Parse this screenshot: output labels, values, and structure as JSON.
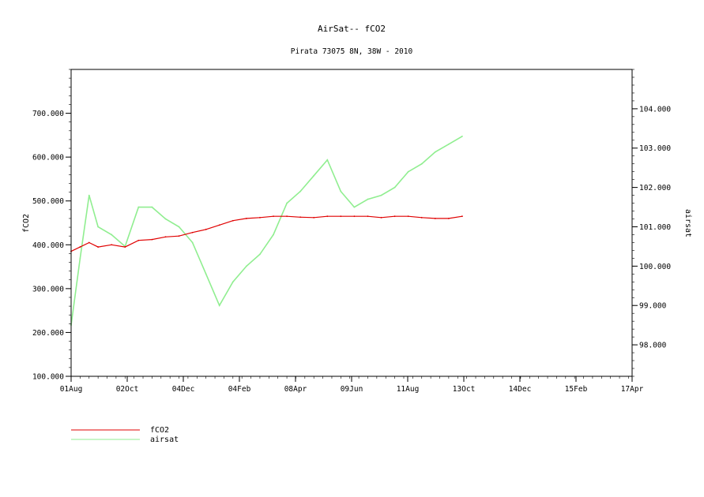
{
  "chart_data": {
    "type": "line",
    "title": "AirSat-- fCO2",
    "subtitle": "Pirata 73075 8N, 38W - 2010",
    "x": {
      "tick_labels": [
        "01Aug",
        "02Oct",
        "04Dec",
        "04Feb",
        "08Apr",
        "09Jun",
        "11Aug",
        "13Oct",
        "14Dec",
        "15Feb",
        "17Apr"
      ],
      "range_days": [
        0,
        624
      ]
    },
    "y_left": {
      "label": "fCO2",
      "ylim": [
        100,
        800
      ],
      "tick_labels": [
        "100.000",
        "200.000",
        "300.000",
        "400.000",
        "500.000",
        "600.000",
        "700.000"
      ],
      "tick_values": [
        100,
        200,
        300,
        400,
        500,
        600,
        700
      ]
    },
    "y_right": {
      "label": "airsat",
      "ylim": [
        97.2,
        105.0
      ],
      "tick_labels": [
        "98.000",
        "99.000",
        "100.000",
        "101.000",
        "102.000",
        "103.000",
        "104.000"
      ],
      "tick_values": [
        98,
        99,
        100,
        101,
        102,
        103,
        104
      ]
    },
    "series": [
      {
        "name": "fCO2",
        "axis": "left",
        "color": "#e00000",
        "x_days": [
          0,
          10,
          20,
          30,
          45,
          60,
          75,
          90,
          105,
          120,
          135,
          150,
          165,
          180,
          195,
          210,
          225,
          240,
          255,
          270,
          285,
          300,
          315,
          330,
          345,
          360,
          375,
          390,
          405,
          420,
          435
        ],
        "values": [
          385,
          395,
          405,
          395,
          400,
          395,
          410,
          412,
          418,
          420,
          428,
          435,
          445,
          455,
          460,
          462,
          465,
          465,
          463,
          462,
          465,
          465,
          465,
          465,
          462,
          465,
          465,
          462,
          460,
          460,
          465
        ]
      },
      {
        "name": "airsat",
        "axis": "right",
        "color": "#90ee90",
        "x_days": [
          0,
          10,
          20,
          30,
          45,
          60,
          75,
          90,
          105,
          120,
          135,
          150,
          165,
          180,
          195,
          210,
          225,
          240,
          255,
          270,
          285,
          300,
          315,
          330,
          345,
          360,
          375,
          390,
          405,
          420,
          435
        ],
        "values": [
          98.5,
          100.2,
          101.8,
          101.0,
          100.8,
          100.5,
          101.5,
          101.5,
          101.2,
          101.0,
          100.6,
          99.8,
          99.0,
          99.6,
          100.0,
          100.3,
          100.8,
          101.6,
          101.9,
          102.3,
          102.7,
          101.9,
          101.5,
          101.7,
          101.8,
          102.0,
          102.4,
          102.6,
          102.9,
          103.1,
          103.3
        ]
      }
    ],
    "grid": false,
    "legend_position": "bottom-left"
  }
}
